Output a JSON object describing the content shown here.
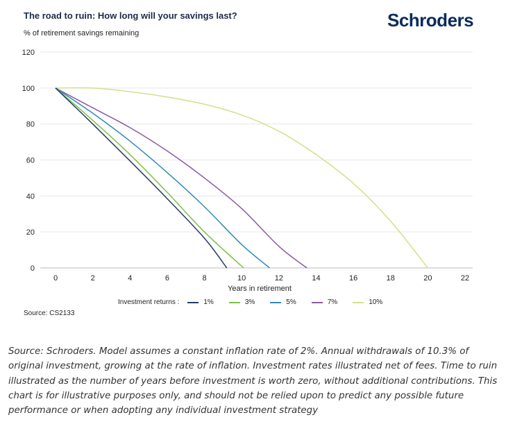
{
  "header": {
    "title": "The road to ruin: How long will your savings last?",
    "brand": "Schroders"
  },
  "chart_data": {
    "type": "line",
    "title": "The road to ruin: How long will your savings last?",
    "ylabel": "% of retirement savings remaining",
    "xlabel": "Years in retirement",
    "xlim": [
      0,
      22
    ],
    "ylim": [
      0,
      120
    ],
    "xticks": [
      0,
      2,
      4,
      6,
      8,
      10,
      12,
      14,
      16,
      18,
      20,
      22
    ],
    "yticks": [
      0,
      20,
      40,
      60,
      80,
      100,
      120
    ],
    "grid": true,
    "legend_title": "Investment returns :",
    "legend_position": "bottom",
    "series": [
      {
        "name": "1%",
        "color": "#1f3b66",
        "x": [
          0,
          2,
          4,
          6,
          8,
          9.2
        ],
        "y": [
          100,
          80,
          59.5,
          38.5,
          16.5,
          0
        ]
      },
      {
        "name": "3%",
        "color": "#7dc142",
        "x": [
          0,
          2,
          4,
          6,
          8,
          10.1
        ],
        "y": [
          100,
          82,
          63,
          42,
          20,
          0
        ]
      },
      {
        "name": "5%",
        "color": "#2e8ab8",
        "x": [
          0,
          2,
          4,
          6,
          8,
          10,
          11.5
        ],
        "y": [
          100,
          86,
          70.5,
          53,
          34,
          13,
          0
        ]
      },
      {
        "name": "7%",
        "color": "#8b5aa0",
        "x": [
          0,
          2,
          4,
          6,
          8,
          10,
          12,
          13.5
        ],
        "y": [
          100,
          89,
          78,
          65,
          50,
          33,
          12,
          0
        ]
      },
      {
        "name": "10%",
        "color": "#cfe28a",
        "x": [
          0,
          2,
          4,
          6,
          8,
          10,
          12,
          14,
          16,
          18,
          20
        ],
        "y": [
          100,
          100,
          98,
          95,
          91,
          85,
          76,
          63,
          47,
          26,
          0
        ]
      }
    ]
  },
  "chart_source": "Source: CS2133",
  "footnote": "Source: Schroders. Model assumes a constant inflation rate of 2%. Annual withdrawals of 10.3% of original investment, growing at the rate of inflation. Investment rates illustrated net of fees. Time to ruin illustrated as the number of years before investment is worth zero, without additional contributions. This chart is for illustrative purposes only, and should not be relied upon to predict any possible future performance or when adopting any individual investment strategy"
}
